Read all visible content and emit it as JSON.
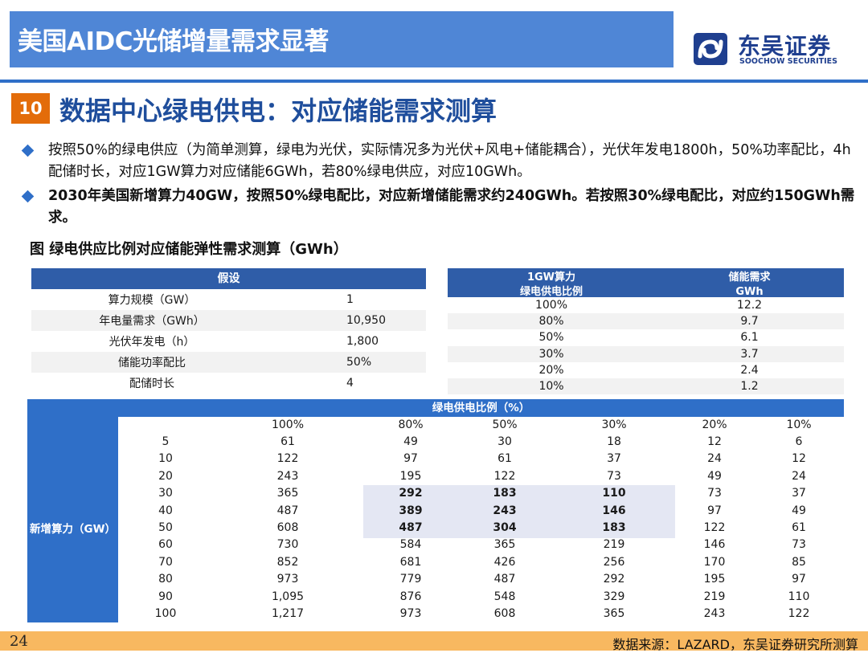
{
  "header": {
    "title": "美国AIDC光储增量需求显著"
  },
  "logo": {
    "name_cn": "东吴证券",
    "name_en": "SOOCHOW SECURITIES",
    "icon": "soochow-logo-icon"
  },
  "section": {
    "number": "10",
    "title": "数据中心绿电供电：对应储能需求测算"
  },
  "bullets": [
    "按照50%的绿电供应（为简单测算，绿电为光伏，实际情况多为光伏+风电+储能耦合），光伏年发电1800h，50%功率配比，4h配储时长，对应1GW算力对应储能6GWh，若80%绿电供应，对应10GWh。",
    "2030年美国新增算力40GW，按照50%绿电配比，对应新增储能需求约240GWh。若按照30%绿电配比，对应约150GWh需求。"
  ],
  "figure_caption": "图 绿电供应比例对应储能弹性需求测算（GWh）",
  "assumptions": {
    "header": "假设",
    "rows": [
      {
        "label": "算力规模（GW）",
        "value": "1"
      },
      {
        "label": "年电量需求（GWh）",
        "value": "10,950"
      },
      {
        "label": "光伏年发电（h）",
        "value": "1,800"
      },
      {
        "label": "储能功率配比",
        "value": "50%"
      },
      {
        "label": "配储时长",
        "value": "4"
      }
    ]
  },
  "ratio_table": {
    "col1_line1": "1GW算力",
    "col1_line2": "绿电供电比例",
    "col2_line1": "储能需求",
    "col2_line2": "GWh",
    "rows": [
      {
        "ratio": "100%",
        "value": "12.2"
      },
      {
        "ratio": "80%",
        "value": "9.7"
      },
      {
        "ratio": "50%",
        "value": "6.1"
      },
      {
        "ratio": "30%",
        "value": "3.7"
      },
      {
        "ratio": "20%",
        "value": "2.4"
      },
      {
        "ratio": "10%",
        "value": "1.2"
      }
    ]
  },
  "matrix": {
    "top_header": "绿电供电比例（%）",
    "left_header": "新增算力（GW）",
    "columns": [
      "100%",
      "80%",
      "50%",
      "30%",
      "20%",
      "10%"
    ],
    "rows": [
      {
        "gw": "5",
        "values": [
          "61",
          "49",
          "30",
          "18",
          "12",
          "6"
        ]
      },
      {
        "gw": "10",
        "values": [
          "122",
          "97",
          "61",
          "37",
          "24",
          "12"
        ]
      },
      {
        "gw": "20",
        "values": [
          "243",
          "195",
          "122",
          "73",
          "49",
          "24"
        ]
      },
      {
        "gw": "30",
        "values": [
          "365",
          "292",
          "183",
          "110",
          "73",
          "37"
        ]
      },
      {
        "gw": "40",
        "values": [
          "487",
          "389",
          "243",
          "146",
          "97",
          "49"
        ]
      },
      {
        "gw": "50",
        "values": [
          "608",
          "487",
          "304",
          "183",
          "122",
          "61"
        ]
      },
      {
        "gw": "60",
        "values": [
          "730",
          "584",
          "365",
          "219",
          "146",
          "73"
        ]
      },
      {
        "gw": "70",
        "values": [
          "852",
          "681",
          "426",
          "256",
          "170",
          "85"
        ]
      },
      {
        "gw": "80",
        "values": [
          "973",
          "779",
          "487",
          "292",
          "195",
          "97"
        ]
      },
      {
        "gw": "90",
        "values": [
          "1,095",
          "876",
          "548",
          "329",
          "219",
          "110"
        ]
      },
      {
        "gw": "100",
        "values": [
          "1,217",
          "973",
          "608",
          "365",
          "243",
          "122"
        ]
      }
    ],
    "highlight_rows": [
      3,
      4,
      5
    ],
    "highlight_cols": [
      1,
      2,
      3
    ]
  },
  "footer": {
    "page_number": "24",
    "source": "数据来源：LAZARD，东吴证券研究所测算"
  },
  "colors": {
    "header_blue": "#4f86d6",
    "table_blue": "#2f6fc8",
    "accent_orange": "#e36c0a",
    "footer_orange": "#f8b860"
  }
}
